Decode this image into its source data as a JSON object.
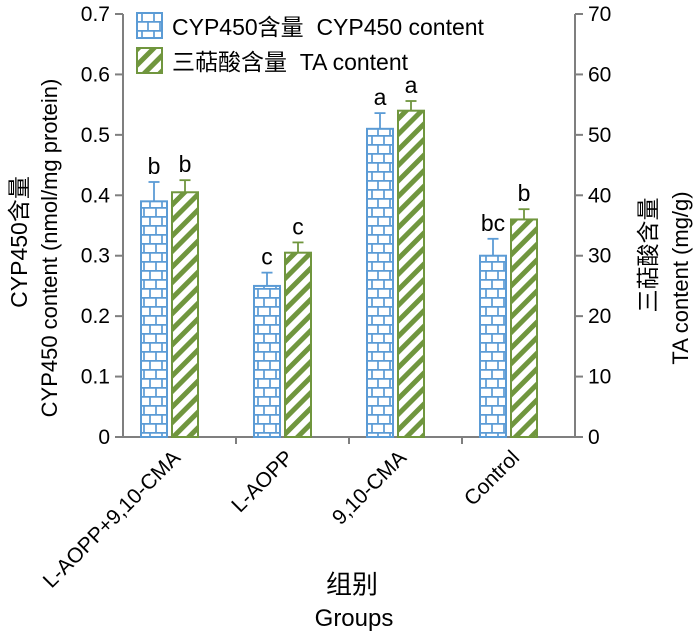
{
  "chart_data": {
    "type": "bar",
    "title": "",
    "grid": false,
    "legend_position": "top-left-inside",
    "categories": [
      "L-AOPP+9,10-CMA",
      "L-AOPP",
      "9,10-CMA",
      "Control"
    ],
    "series": [
      {
        "name": "CYP450含量  CYP450 content",
        "axis": "left",
        "pattern": "brick",
        "color": "#5B9BD5",
        "values": [
          0.39,
          0.25,
          0.51,
          0.3
        ],
        "errors": [
          0.032,
          0.022,
          0.026,
          0.028
        ],
        "letters": [
          "b",
          "c",
          "a",
          "bc"
        ]
      },
      {
        "name": "三萜酸含量  TA content",
        "axis": "right",
        "pattern": "diagonal",
        "color": "#70963E",
        "values": [
          40.5,
          30.5,
          54,
          36
        ],
        "errors": [
          2.0,
          1.7,
          1.6,
          1.7
        ],
        "letters": [
          "b",
          "c",
          "a",
          "b"
        ]
      }
    ],
    "left_axis": {
      "label_zh": "CYP450含量",
      "label_en": "CYP450 content (nmol/mg protein)",
      "min": 0,
      "max": 0.7,
      "step": 0.1,
      "ticks": [
        "0",
        "0.1",
        "0.2",
        "0.3",
        "0.4",
        "0.5",
        "0.6",
        "0.7"
      ]
    },
    "right_axis": {
      "label_zh": "三萜酸含量",
      "label_en": "TA content (mg/g)",
      "min": 0,
      "max": 70,
      "step": 10,
      "ticks": [
        "0",
        "10",
        "20",
        "30",
        "40",
        "50",
        "60",
        "70"
      ]
    },
    "x_axis": {
      "label_zh": "组别",
      "label_en": "Groups"
    }
  },
  "legend": {
    "items": [
      {
        "label": "CYP450含量  CYP450 content",
        "swatch": "brick-blue"
      },
      {
        "label": "三萜酸含量  TA content",
        "swatch": "diagonal-green"
      }
    ]
  }
}
